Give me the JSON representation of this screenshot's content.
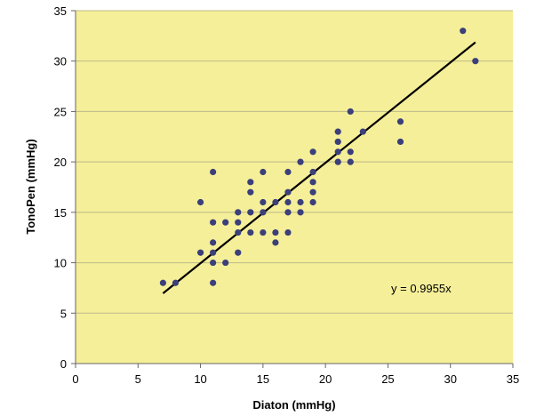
{
  "chart_data": {
    "type": "scatter",
    "xlabel": "Diaton (mmHg)",
    "ylabel": "TonoPen (mmHg)",
    "xlim": [
      0,
      35
    ],
    "ylim": [
      0,
      35
    ],
    "xticks": [
      0,
      5,
      10,
      15,
      20,
      25,
      30,
      35
    ],
    "yticks": [
      0,
      5,
      10,
      15,
      20,
      25,
      30,
      35
    ],
    "grid": "horizontal",
    "background_color": "#f5ef99",
    "point_color": "#3b3f7a",
    "line_color": "#000000",
    "points": [
      [
        7,
        8
      ],
      [
        8,
        8
      ],
      [
        10,
        11
      ],
      [
        10,
        16
      ],
      [
        11,
        8
      ],
      [
        11,
        10
      ],
      [
        11,
        11
      ],
      [
        11,
        12
      ],
      [
        11,
        14
      ],
      [
        11,
        19
      ],
      [
        12,
        10
      ],
      [
        12,
        14
      ],
      [
        13,
        11
      ],
      [
        13,
        13
      ],
      [
        13,
        14
      ],
      [
        13,
        15
      ],
      [
        14,
        13
      ],
      [
        14,
        15
      ],
      [
        14,
        17
      ],
      [
        14,
        18
      ],
      [
        15,
        13
      ],
      [
        15,
        15
      ],
      [
        15,
        16
      ],
      [
        15,
        19
      ],
      [
        16,
        12
      ],
      [
        16,
        13
      ],
      [
        16,
        16
      ],
      [
        17,
        13
      ],
      [
        17,
        15
      ],
      [
        17,
        16
      ],
      [
        17,
        17
      ],
      [
        17,
        19
      ],
      [
        18,
        15
      ],
      [
        18,
        16
      ],
      [
        18,
        20
      ],
      [
        19,
        16
      ],
      [
        19,
        17
      ],
      [
        19,
        18
      ],
      [
        19,
        19
      ],
      [
        19,
        21
      ],
      [
        21,
        20
      ],
      [
        21,
        21
      ],
      [
        21,
        22
      ],
      [
        21,
        23
      ],
      [
        22,
        20
      ],
      [
        22,
        21
      ],
      [
        22,
        25
      ],
      [
        23,
        23
      ],
      [
        26,
        22
      ],
      [
        26,
        24
      ],
      [
        31,
        33
      ],
      [
        32,
        30
      ]
    ],
    "trendline": {
      "slope": 0.9955,
      "x_from": 7,
      "x_to": 32
    },
    "annotation": "y = 0.9955x"
  }
}
